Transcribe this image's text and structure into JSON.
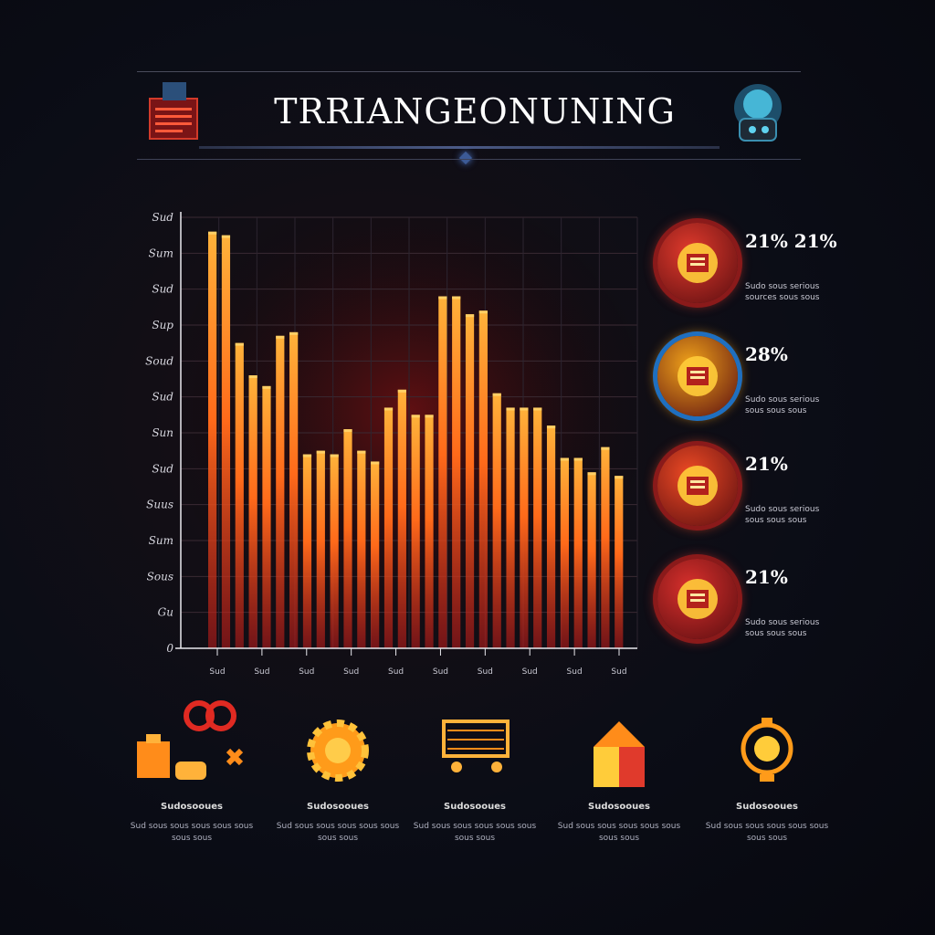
{
  "header": {
    "title": "TRRIANGEONUNING"
  },
  "chart_data": {
    "type": "bar",
    "title": "",
    "xlabel": "",
    "ylabel": "",
    "ylim": [
      0,
      12
    ],
    "y_tick_labels": [
      "0",
      "Gu",
      "Sous",
      "Sum",
      "Suus",
      "Sud",
      "Sun",
      "Sud",
      "Soud",
      "Sup",
      "Sud",
      "Sum",
      "Sud"
    ],
    "x_tick_labels": [
      "Sud",
      "Sud",
      "Sud",
      "Sud",
      "Sud",
      "Sud",
      "Sud",
      "Sud",
      "Sud",
      "Sud"
    ],
    "values": [
      11.6,
      11.5,
      8.5,
      7.6,
      7.3,
      8.7,
      8.8,
      5.4,
      5.5,
      5.4,
      6.1,
      5.5,
      5.2,
      6.7,
      7.2,
      6.5,
      6.5,
      9.8,
      9.8,
      9.3,
      9.4,
      7.1,
      6.7,
      6.7,
      6.7,
      6.2,
      5.3,
      5.3,
      4.9,
      5.6,
      4.8
    ],
    "series_color": "#ff6a1a",
    "grid": true
  },
  "stats": [
    {
      "value": "21% 21%",
      "description": "Sudo sous serious sources sous sous",
      "color": "#e03a2c",
      "icon": "report-icon"
    },
    {
      "value": "28%",
      "description": "Sudo sous serious sous sous sous",
      "color": "#f0a21a",
      "icon": "coin-icon"
    },
    {
      "value": "21%",
      "description": "Sudo sous serious sous sous sous",
      "color": "#ee4a24",
      "icon": "calculator-icon"
    },
    {
      "value": "21%",
      "description": "Sudo sous serious sous sous sous",
      "color": "#d8302c",
      "icon": "document-icon"
    }
  ],
  "features": [
    {
      "title": "Sudosooues",
      "description": "Sud sous sous sous sous sous sous sous",
      "icon": "blocks-icon"
    },
    {
      "title": "Sudosooues",
      "description": "Sud sous sous sous sous sous sous sous",
      "icon": "gear-icon"
    },
    {
      "title": "Sudosooues",
      "description": "Sud sous sous sous sous sous sous sous",
      "icon": "cart-icon"
    },
    {
      "title": "Sudosooues",
      "description": "Sud sous sous sous sous sous sous sous",
      "icon": "cube-icon"
    },
    {
      "title": "Sudosooues",
      "description": "Sud sous sous sous sous sous sous sous",
      "icon": "bulb-icon"
    }
  ]
}
